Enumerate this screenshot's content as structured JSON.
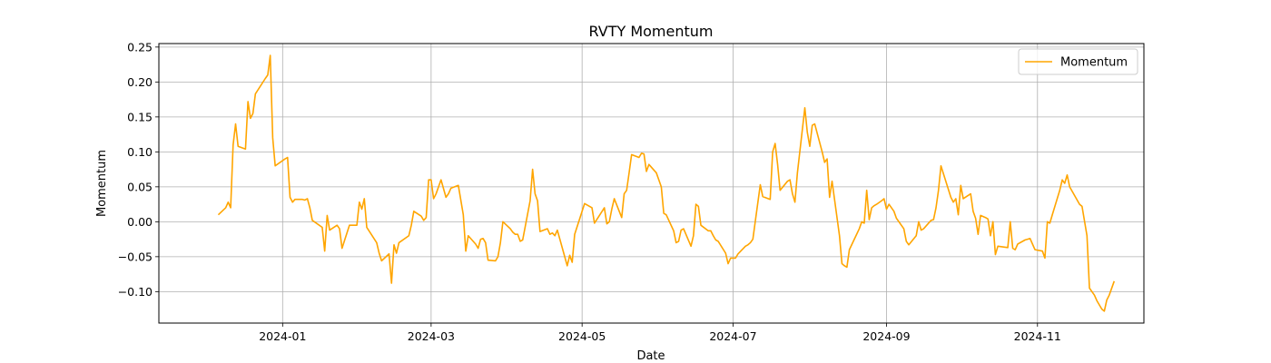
{
  "chart_data": {
    "type": "line",
    "title": "RVTY Momentum",
    "xlabel": "Date",
    "ylabel": "Momentum",
    "xlim": [
      "2023-11-12",
      "2024-12-14"
    ],
    "ylim": [
      -0.145,
      0.255
    ],
    "x_ticks": [
      "2024-01-01",
      "2024-03-01",
      "2024-05-01",
      "2024-07-01",
      "2024-09-01",
      "2024-11-01"
    ],
    "x_tick_labels": [
      "2024-01",
      "2024-03",
      "2024-05",
      "2024-07",
      "2024-09",
      "2024-11"
    ],
    "y_ticks": [
      -0.1,
      -0.05,
      0.0,
      0.05,
      0.1,
      0.15,
      0.2,
      0.25
    ],
    "y_tick_labels": [
      "−0.10",
      "−0.05",
      "0.00",
      "0.05",
      "0.10",
      "0.15",
      "0.20",
      "0.25"
    ],
    "grid": true,
    "legend": {
      "position": "top-right",
      "entries": [
        "Momentum"
      ]
    },
    "color": "#ffa500",
    "series": [
      {
        "name": "Momentum",
        "points": [
          [
            "2023-12-06",
            0.01
          ],
          [
            "2023-12-09",
            0.02
          ],
          [
            "2023-12-10",
            0.028
          ],
          [
            "2023-12-11",
            0.02
          ],
          [
            "2023-12-12",
            0.11
          ],
          [
            "2023-12-13",
            0.14
          ],
          [
            "2023-12-14",
            0.108
          ],
          [
            "2023-12-17",
            0.104
          ],
          [
            "2023-12-18",
            0.172
          ],
          [
            "2023-12-19",
            0.148
          ],
          [
            "2023-12-20",
            0.155
          ],
          [
            "2023-12-21",
            0.183
          ],
          [
            "2023-12-25",
            0.205
          ],
          [
            "2023-12-26",
            0.21
          ],
          [
            "2023-12-27",
            0.238
          ],
          [
            "2023-12-28",
            0.12
          ],
          [
            "2023-12-29",
            0.08
          ],
          [
            "2024-01-02",
            0.09
          ],
          [
            "2024-01-03",
            0.092
          ],
          [
            "2024-01-04",
            0.035
          ],
          [
            "2024-01-05",
            0.028
          ],
          [
            "2024-01-06",
            0.032
          ],
          [
            "2024-01-09",
            0.032
          ],
          [
            "2024-01-10",
            0.031
          ],
          [
            "2024-01-11",
            0.033
          ],
          [
            "2024-01-12",
            0.02
          ],
          [
            "2024-01-13",
            0.002
          ],
          [
            "2024-01-17",
            -0.008
          ],
          [
            "2024-01-18",
            -0.042
          ],
          [
            "2024-01-19",
            0.009
          ],
          [
            "2024-01-20",
            -0.012
          ],
          [
            "2024-01-23",
            -0.005
          ],
          [
            "2024-01-24",
            -0.01
          ],
          [
            "2024-01-25",
            -0.038
          ],
          [
            "2024-01-28",
            -0.005
          ],
          [
            "2024-01-31",
            -0.005
          ],
          [
            "2024-02-01",
            0.028
          ],
          [
            "2024-02-02",
            0.018
          ],
          [
            "2024-02-03",
            0.033
          ],
          [
            "2024-02-04",
            -0.008
          ],
          [
            "2024-02-08",
            -0.03
          ],
          [
            "2024-02-09",
            -0.045
          ],
          [
            "2024-02-10",
            -0.056
          ],
          [
            "2024-02-13",
            -0.046
          ],
          [
            "2024-02-14",
            -0.088
          ],
          [
            "2024-02-15",
            -0.033
          ],
          [
            "2024-02-16",
            -0.045
          ],
          [
            "2024-02-17",
            -0.03
          ],
          [
            "2024-02-21",
            -0.02
          ],
          [
            "2024-02-22",
            -0.005
          ],
          [
            "2024-02-23",
            0.015
          ],
          [
            "2024-02-26",
            0.008
          ],
          [
            "2024-02-27",
            0.002
          ],
          [
            "2024-02-28",
            0.006
          ],
          [
            "2024-02-29",
            0.06
          ],
          [
            "2024-03-01",
            0.06
          ],
          [
            "2024-03-02",
            0.033
          ],
          [
            "2024-03-03",
            0.04
          ],
          [
            "2024-03-05",
            0.06
          ],
          [
            "2024-03-07",
            0.035
          ],
          [
            "2024-03-08",
            0.04
          ],
          [
            "2024-03-09",
            0.048
          ],
          [
            "2024-03-12",
            0.052
          ],
          [
            "2024-03-14",
            0.01
          ],
          [
            "2024-03-15",
            -0.042
          ],
          [
            "2024-03-16",
            -0.02
          ],
          [
            "2024-03-19",
            -0.032
          ],
          [
            "2024-03-20",
            -0.038
          ],
          [
            "2024-03-21",
            -0.025
          ],
          [
            "2024-03-22",
            -0.024
          ],
          [
            "2024-03-23",
            -0.03
          ],
          [
            "2024-03-24",
            -0.055
          ],
          [
            "2024-03-27",
            -0.056
          ],
          [
            "2024-03-28",
            -0.05
          ],
          [
            "2024-03-29",
            -0.03
          ],
          [
            "2024-03-30",
            0.0
          ],
          [
            "2024-04-02",
            -0.01
          ],
          [
            "2024-04-03",
            -0.015
          ],
          [
            "2024-04-04",
            -0.018
          ],
          [
            "2024-04-05",
            -0.018
          ],
          [
            "2024-04-06",
            -0.028
          ],
          [
            "2024-04-07",
            -0.026
          ],
          [
            "2024-04-10",
            0.03
          ],
          [
            "2024-04-11",
            0.075
          ],
          [
            "2024-04-12",
            0.04
          ],
          [
            "2024-04-13",
            0.03
          ],
          [
            "2024-04-14",
            -0.014
          ],
          [
            "2024-04-17",
            -0.01
          ],
          [
            "2024-04-18",
            -0.018
          ],
          [
            "2024-04-19",
            -0.016
          ],
          [
            "2024-04-20",
            -0.02
          ],
          [
            "2024-04-21",
            -0.012
          ],
          [
            "2024-04-25",
            -0.063
          ],
          [
            "2024-04-26",
            -0.048
          ],
          [
            "2024-04-27",
            -0.058
          ],
          [
            "2024-04-28",
            -0.018
          ],
          [
            "2024-05-02",
            0.026
          ],
          [
            "2024-05-05",
            0.02
          ],
          [
            "2024-05-06",
            -0.002
          ],
          [
            "2024-05-10",
            0.02
          ],
          [
            "2024-05-11",
            -0.003
          ],
          [
            "2024-05-12",
            0.0
          ],
          [
            "2024-05-13",
            0.018
          ],
          [
            "2024-05-14",
            0.033
          ],
          [
            "2024-05-17",
            0.006
          ],
          [
            "2024-05-18",
            0.04
          ],
          [
            "2024-05-19",
            0.045
          ],
          [
            "2024-05-20",
            0.07
          ],
          [
            "2024-05-21",
            0.096
          ],
          [
            "2024-05-24",
            0.092
          ],
          [
            "2024-05-25",
            0.098
          ],
          [
            "2024-05-26",
            0.097
          ],
          [
            "2024-05-27",
            0.072
          ],
          [
            "2024-05-28",
            0.082
          ],
          [
            "2024-05-31",
            0.07
          ],
          [
            "2024-06-01",
            0.06
          ],
          [
            "2024-06-02",
            0.05
          ],
          [
            "2024-06-03",
            0.012
          ],
          [
            "2024-06-04",
            0.01
          ],
          [
            "2024-06-07",
            -0.013
          ],
          [
            "2024-06-08",
            -0.03
          ],
          [
            "2024-06-09",
            -0.028
          ],
          [
            "2024-06-10",
            -0.012
          ],
          [
            "2024-06-11",
            -0.01
          ],
          [
            "2024-06-14",
            -0.035
          ],
          [
            "2024-06-15",
            -0.02
          ],
          [
            "2024-06-16",
            0.025
          ],
          [
            "2024-06-17",
            0.022
          ],
          [
            "2024-06-18",
            -0.005
          ],
          [
            "2024-06-21",
            -0.013
          ],
          [
            "2024-06-22",
            -0.013
          ],
          [
            "2024-06-23",
            -0.02
          ],
          [
            "2024-06-24",
            -0.026
          ],
          [
            "2024-06-25",
            -0.028
          ],
          [
            "2024-06-28",
            -0.045
          ],
          [
            "2024-06-29",
            -0.06
          ],
          [
            "2024-06-30",
            -0.052
          ],
          [
            "2024-07-01",
            -0.052
          ],
          [
            "2024-07-02",
            -0.052
          ],
          [
            "2024-07-03",
            -0.046
          ],
          [
            "2024-07-06",
            -0.035
          ],
          [
            "2024-07-07",
            -0.033
          ],
          [
            "2024-07-08",
            -0.03
          ],
          [
            "2024-07-09",
            -0.025
          ],
          [
            "2024-07-12",
            0.053
          ],
          [
            "2024-07-13",
            0.036
          ],
          [
            "2024-07-16",
            0.032
          ],
          [
            "2024-07-17",
            0.1
          ],
          [
            "2024-07-18",
            0.112
          ],
          [
            "2024-07-19",
            0.082
          ],
          [
            "2024-07-20",
            0.045
          ],
          [
            "2024-07-23",
            0.058
          ],
          [
            "2024-07-24",
            0.06
          ],
          [
            "2024-07-25",
            0.04
          ],
          [
            "2024-07-26",
            0.028
          ],
          [
            "2024-07-27",
            0.07
          ],
          [
            "2024-07-30",
            0.163
          ],
          [
            "2024-07-31",
            0.128
          ],
          [
            "2024-08-01",
            0.108
          ],
          [
            "2024-08-02",
            0.138
          ],
          [
            "2024-08-03",
            0.14
          ],
          [
            "2024-08-06",
            0.1
          ],
          [
            "2024-08-07",
            0.085
          ],
          [
            "2024-08-08",
            0.09
          ],
          [
            "2024-08-09",
            0.035
          ],
          [
            "2024-08-10",
            0.058
          ],
          [
            "2024-08-13",
            -0.02
          ],
          [
            "2024-08-14",
            -0.06
          ],
          [
            "2024-08-15",
            -0.063
          ],
          [
            "2024-08-16",
            -0.065
          ],
          [
            "2024-08-17",
            -0.04
          ],
          [
            "2024-08-21",
            -0.01
          ],
          [
            "2024-08-22",
            0.0
          ],
          [
            "2024-08-23",
            -0.002
          ],
          [
            "2024-08-24",
            0.045
          ],
          [
            "2024-08-25",
            0.003
          ],
          [
            "2024-08-26",
            0.02
          ],
          [
            "2024-08-27",
            0.023
          ],
          [
            "2024-08-28",
            0.025
          ],
          [
            "2024-08-30",
            0.03
          ],
          [
            "2024-08-31",
            0.033
          ],
          [
            "2024-09-01",
            0.018
          ],
          [
            "2024-09-02",
            0.025
          ],
          [
            "2024-09-04",
            0.015
          ],
          [
            "2024-09-05",
            0.005
          ],
          [
            "2024-09-08",
            -0.01
          ],
          [
            "2024-09-09",
            -0.028
          ],
          [
            "2024-09-10",
            -0.033
          ],
          [
            "2024-09-13",
            -0.02
          ],
          [
            "2024-09-14",
            0.0
          ],
          [
            "2024-09-15",
            -0.012
          ],
          [
            "2024-09-16",
            -0.01
          ],
          [
            "2024-09-19",
            0.002
          ],
          [
            "2024-09-20",
            0.003
          ],
          [
            "2024-09-21",
            0.02
          ],
          [
            "2024-09-22",
            0.045
          ],
          [
            "2024-09-23",
            0.08
          ],
          [
            "2024-09-27",
            0.035
          ],
          [
            "2024-09-28",
            0.028
          ],
          [
            "2024-09-29",
            0.033
          ],
          [
            "2024-09-30",
            0.01
          ],
          [
            "2024-10-01",
            0.052
          ],
          [
            "2024-10-02",
            0.033
          ],
          [
            "2024-10-05",
            0.04
          ],
          [
            "2024-10-06",
            0.015
          ],
          [
            "2024-10-07",
            0.005
          ],
          [
            "2024-10-08",
            -0.018
          ],
          [
            "2024-10-09",
            0.009
          ],
          [
            "2024-10-11",
            0.006
          ],
          [
            "2024-10-12",
            0.004
          ],
          [
            "2024-10-13",
            -0.02
          ],
          [
            "2024-10-14",
            0.0
          ],
          [
            "2024-10-15",
            -0.047
          ],
          [
            "2024-10-16",
            -0.035
          ],
          [
            "2024-10-20",
            -0.037
          ],
          [
            "2024-10-21",
            0.0
          ],
          [
            "2024-10-22",
            -0.038
          ],
          [
            "2024-10-23",
            -0.04
          ],
          [
            "2024-10-24",
            -0.032
          ],
          [
            "2024-10-27",
            -0.026
          ],
          [
            "2024-10-28",
            -0.025
          ],
          [
            "2024-10-29",
            -0.024
          ],
          [
            "2024-10-30",
            -0.032
          ],
          [
            "2024-10-31",
            -0.04
          ],
          [
            "2024-11-03",
            -0.042
          ],
          [
            "2024-11-04",
            -0.052
          ],
          [
            "2024-11-05",
            0.0
          ],
          [
            "2024-11-06",
            -0.002
          ],
          [
            "2024-11-07",
            0.01
          ],
          [
            "2024-11-10",
            0.045
          ],
          [
            "2024-11-11",
            0.06
          ],
          [
            "2024-11-12",
            0.055
          ],
          [
            "2024-11-13",
            0.067
          ],
          [
            "2024-11-14",
            0.05
          ],
          [
            "2024-11-18",
            0.025
          ],
          [
            "2024-11-19",
            0.022
          ],
          [
            "2024-11-21",
            -0.02
          ],
          [
            "2024-11-22",
            -0.095
          ],
          [
            "2024-11-24",
            -0.105
          ],
          [
            "2024-11-25",
            -0.113
          ],
          [
            "2024-11-27",
            -0.125
          ],
          [
            "2024-11-28",
            -0.128
          ],
          [
            "2024-11-29",
            -0.112
          ],
          [
            "2024-11-30",
            -0.105
          ],
          [
            "2024-12-02",
            -0.085
          ]
        ]
      }
    ]
  }
}
